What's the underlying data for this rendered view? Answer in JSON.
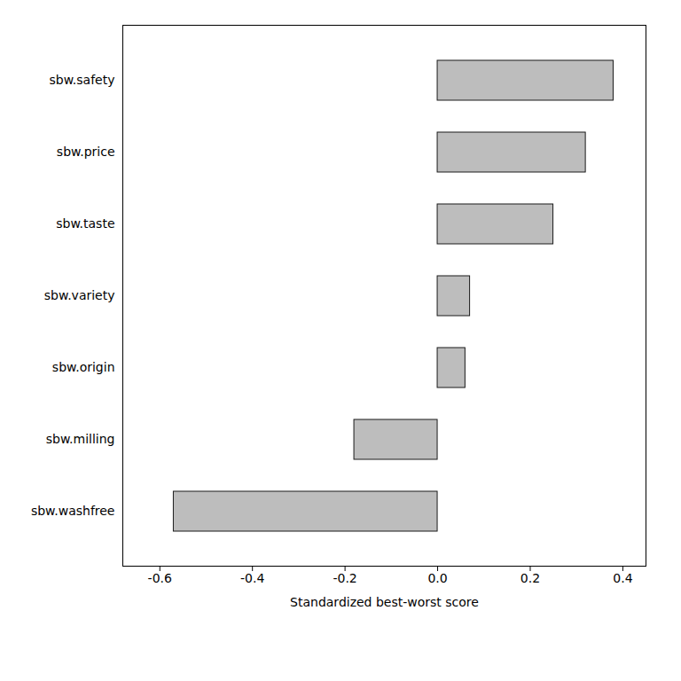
{
  "chart_data": {
    "type": "bar",
    "orientation": "horizontal",
    "categories": [
      "sbw.safety",
      "sbw.price",
      "sbw.taste",
      "sbw.variety",
      "sbw.origin",
      "sbw.milling",
      "sbw.washfree"
    ],
    "values": [
      0.38,
      0.32,
      0.25,
      0.07,
      0.06,
      -0.18,
      -0.57
    ],
    "color": "#BDBDBD",
    "xlabel": "Standardized best-worst score",
    "xlim": [
      -0.68,
      0.45
    ],
    "xticks": [
      -0.6,
      -0.4,
      -0.2,
      {
        "value": 0,
        "label": "0.0"
      },
      0.2,
      0.4
    ],
    "grid": false
  }
}
